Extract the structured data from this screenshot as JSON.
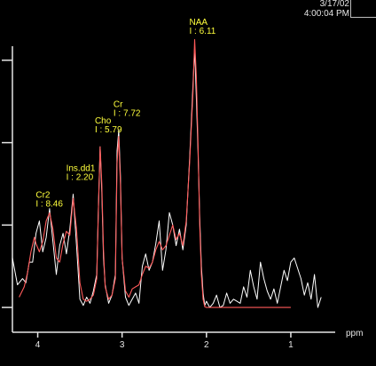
{
  "header": {
    "date": "3/17/02",
    "time": "4:00:04 PM"
  },
  "colors": {
    "background": "#000000",
    "axis": "#e6e6e6",
    "measured": "#ffffff",
    "fit": "#ff5a5a",
    "label": "#ffff3c"
  },
  "chart_data": {
    "type": "line",
    "xlabel": "ppm",
    "ylabel": "",
    "x_reversed": true,
    "xlim": [
      4.3,
      0.6
    ],
    "ylim": [
      -0.3,
      6.6
    ],
    "x_ticks": [
      {
        "value": 4,
        "label": "4"
      },
      {
        "value": 3,
        "label": "3"
      },
      {
        "value": 2,
        "label": "2"
      },
      {
        "value": 1,
        "label": "1"
      }
    ],
    "y_ticks": [
      0,
      2,
      4,
      6
    ],
    "series": [
      {
        "role": "measured",
        "x": [
          4.3,
          4.24,
          4.18,
          4.14,
          4.1,
          4.06,
          4.02,
          3.98,
          3.94,
          3.9,
          3.86,
          3.82,
          3.78,
          3.74,
          3.7,
          3.66,
          3.62,
          3.58,
          3.54,
          3.5,
          3.46,
          3.42,
          3.38,
          3.34,
          3.3,
          3.28,
          3.26,
          3.24,
          3.22,
          3.2,
          3.16,
          3.12,
          3.08,
          3.06,
          3.04,
          3.02,
          3.0,
          2.96,
          2.92,
          2.88,
          2.84,
          2.8,
          2.76,
          2.72,
          2.68,
          2.64,
          2.6,
          2.56,
          2.52,
          2.48,
          2.44,
          2.4,
          2.36,
          2.32,
          2.28,
          2.24,
          2.2,
          2.16,
          2.14,
          2.12,
          2.1,
          2.08,
          2.06,
          2.04,
          2.02,
          2.0,
          1.96,
          1.92,
          1.88,
          1.84,
          1.8,
          1.76,
          1.72,
          1.68,
          1.64,
          1.6,
          1.56,
          1.52,
          1.48,
          1.44,
          1.4,
          1.36,
          1.32,
          1.28,
          1.24,
          1.2,
          1.16,
          1.12,
          1.08,
          1.04,
          1.0,
          0.96,
          0.92,
          0.88,
          0.84,
          0.8,
          0.76,
          0.72,
          0.68,
          0.64
        ],
        "y": [
          1.2,
          0.55,
          0.7,
          0.6,
          1.1,
          1.1,
          1.8,
          2.1,
          1.35,
          1.7,
          2.4,
          1.6,
          0.8,
          1.5,
          1.8,
          1.3,
          1.9,
          2.75,
          1.5,
          0.2,
          0.05,
          0.25,
          0.1,
          0.4,
          0.8,
          2.45,
          3.9,
          2.8,
          1.2,
          0.55,
          0.1,
          0.3,
          0.8,
          3.8,
          4.3,
          3.2,
          1.2,
          0.25,
          0.05,
          0.2,
          0.35,
          0.1,
          1.0,
          1.3,
          0.9,
          1.1,
          1.55,
          2.1,
          0.9,
          1.4,
          2.3,
          2.0,
          1.5,
          1.9,
          1.4,
          2.0,
          3.6,
          5.4,
          6.3,
          5.1,
          3.8,
          2.2,
          1.0,
          0.35,
          0.05,
          0.15,
          0.0,
          0.1,
          0.3,
          0.0,
          0.05,
          0.35,
          0.1,
          0.2,
          0.15,
          0.1,
          0.5,
          0.25,
          0.9,
          0.5,
          0.2,
          1.1,
          0.7,
          0.4,
          0.2,
          0.45,
          0.1,
          0.5,
          0.9,
          0.65,
          1.1,
          1.2,
          0.95,
          0.7,
          0.3,
          0.6,
          0.2,
          0.8,
          0.0,
          0.25
        ]
      },
      {
        "role": "fit",
        "x": [
          4.22,
          4.16,
          4.12,
          4.08,
          4.04,
          4.02,
          3.98,
          3.94,
          3.9,
          3.86,
          3.82,
          3.78,
          3.74,
          3.7,
          3.66,
          3.62,
          3.58,
          3.54,
          3.5,
          3.46,
          3.42,
          3.38,
          3.34,
          3.3,
          3.28,
          3.26,
          3.24,
          3.22,
          3.2,
          3.16,
          3.12,
          3.08,
          3.06,
          3.04,
          3.02,
          3.0,
          2.96,
          2.92,
          2.88,
          2.84,
          2.8,
          2.76,
          2.72,
          2.68,
          2.64,
          2.6,
          2.56,
          2.52,
          2.48,
          2.44,
          2.4,
          2.36,
          2.32,
          2.28,
          2.24,
          2.2,
          2.16,
          2.14,
          2.12,
          2.1,
          2.08,
          2.06,
          2.04,
          2.02,
          2.0,
          1.96,
          1.9,
          1.8,
          1.6,
          1.4,
          1.2,
          1.0
        ],
        "y": [
          0.25,
          0.5,
          0.85,
          1.35,
          1.7,
          1.55,
          1.35,
          1.6,
          2.1,
          2.3,
          1.9,
          1.2,
          1.1,
          1.55,
          1.85,
          1.75,
          2.65,
          1.9,
          0.6,
          0.2,
          0.15,
          0.2,
          0.3,
          0.7,
          2.4,
          3.9,
          3.0,
          1.4,
          0.5,
          0.2,
          0.3,
          0.7,
          3.5,
          4.15,
          3.0,
          1.2,
          0.4,
          0.25,
          0.45,
          0.5,
          0.55,
          0.8,
          1.0,
          0.95,
          1.1,
          1.4,
          1.6,
          1.4,
          1.5,
          1.75,
          2.0,
          1.65,
          1.8,
          1.5,
          2.1,
          3.5,
          5.2,
          6.5,
          5.6,
          4.0,
          2.0,
          0.8,
          0.2,
          0.02,
          0.0,
          0.0,
          0.0,
          0.0,
          0.0,
          0.0,
          0.0,
          0.0
        ]
      }
    ],
    "annotations": [
      {
        "name": "Cr2",
        "integral": "I : 8.46",
        "x": 3.96,
        "y": 2.1
      },
      {
        "name": "Ins.dd1",
        "integral": "I : 2.20",
        "x": 3.6,
        "y": 2.75
      },
      {
        "name": "Cho",
        "integral": "I : 5.79",
        "x": 3.26,
        "y": 3.9
      },
      {
        "name": "Cr",
        "integral": "I : 7.72",
        "x": 3.04,
        "y": 4.3
      },
      {
        "name": "NAA",
        "integral": "I : 6.11",
        "x": 2.14,
        "y": 6.3
      }
    ]
  }
}
